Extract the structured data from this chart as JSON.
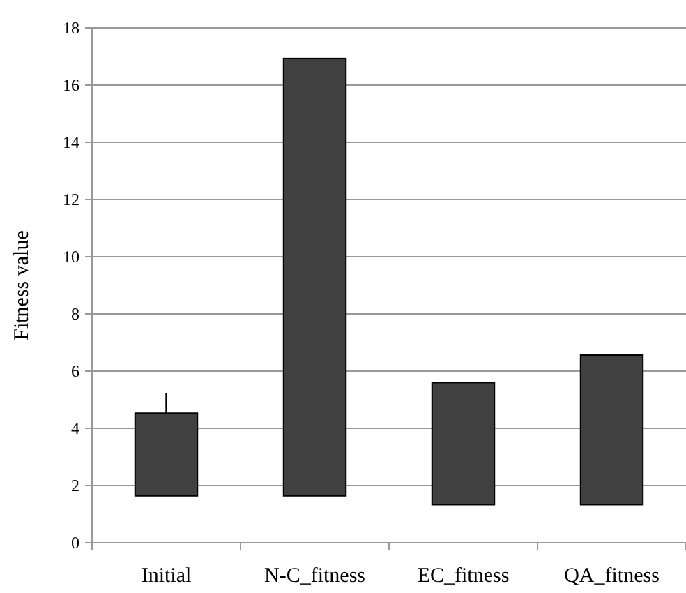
{
  "chart_data": {
    "type": "bar",
    "ylabel": "Fitness value",
    "categories": [
      "Initial",
      "N-C_fitness",
      "EC_fitness",
      "QA_fitness"
    ],
    "base": [
      1.64,
      1.64,
      1.33,
      1.33
    ],
    "values": [
      2.89,
      15.29,
      4.27,
      5.23
    ],
    "errors": [
      [
        4.53,
        5.23
      ],
      null,
      null,
      null
    ],
    "color": "#404040",
    "ylim": [
      0,
      18
    ],
    "yticks": [
      0,
      2,
      4,
      6,
      8,
      10,
      12,
      14,
      16,
      18
    ],
    "grid": "y"
  }
}
